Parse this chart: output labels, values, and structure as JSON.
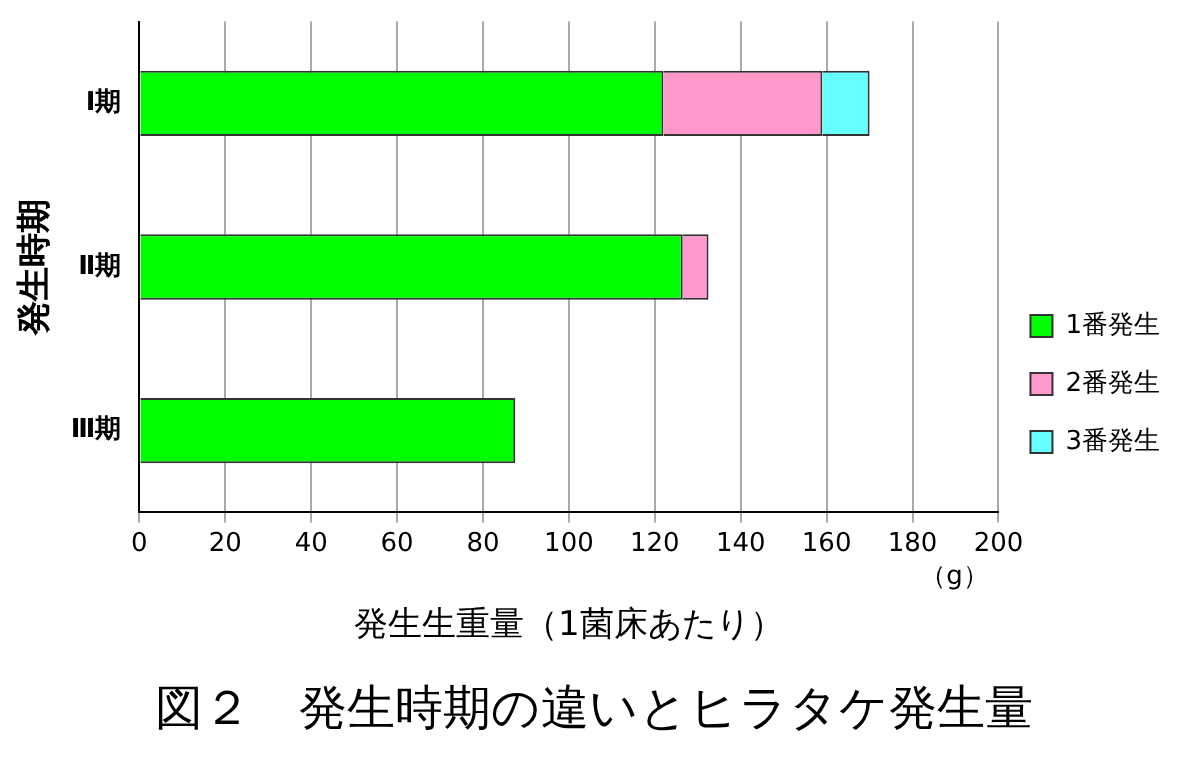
{
  "chart_data": {
    "type": "bar",
    "orientation": "horizontal",
    "stacked": true,
    "title": "図２　発生時期の違いとヒラタケ発生量",
    "xlabel": "発生生重量（1菌床あたり）",
    "ylabel": "発生時期",
    "categories": [
      "Ⅰ期",
      "Ⅱ期",
      "Ⅲ期"
    ],
    "series": [
      {
        "name": "1番発生",
        "color": "#00ff00",
        "values": [
          122,
          126.5,
          87.5
        ]
      },
      {
        "name": "2番発生",
        "color": "#ff99cc",
        "values": [
          37,
          6,
          null
        ]
      },
      {
        "name": "3番発生",
        "color": "#66ffff",
        "values": [
          11,
          null,
          null
        ]
      }
    ],
    "xlim": [
      0,
      200
    ],
    "xticks": [
      0,
      20,
      40,
      60,
      80,
      100,
      120,
      140,
      160,
      180,
      200
    ],
    "grid": "x",
    "legend": "right",
    "annotations": [
      "（g）"
    ]
  }
}
